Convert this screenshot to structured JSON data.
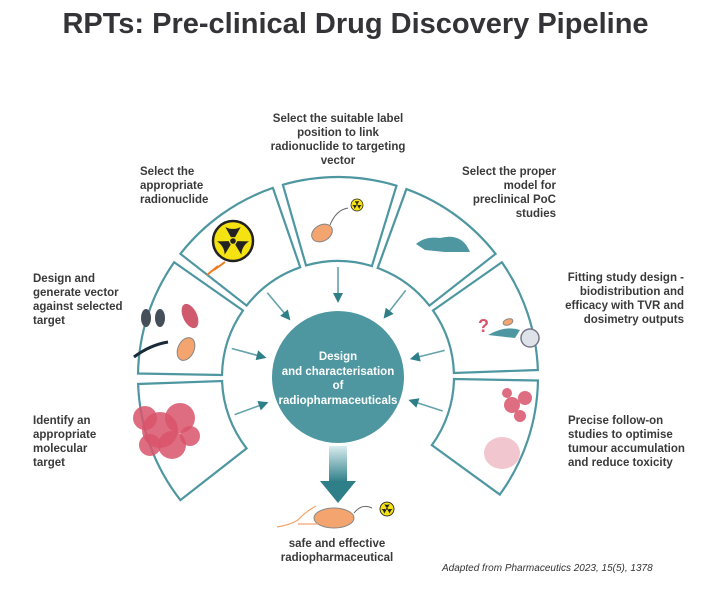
{
  "title": "RPTs: Pre-clinical Drug Discovery Pipeline",
  "colors": {
    "teal": "#4e97a1",
    "ring_stroke": "#4e97a1",
    "orange": "#f4a46e",
    "tumour": "#d9536b",
    "yellow": "#f5e211"
  },
  "center": {
    "text_lines": [
      "Design",
      "and characterisation",
      "of",
      "radiopharmaceuticals"
    ]
  },
  "steps": [
    {
      "label": "Identify an appropriate molecular target",
      "icon": "tumour-cells-icon"
    },
    {
      "label": "Design and generate vector against selected target",
      "icon": "antibody-vector-icon"
    },
    {
      "label": "Select the appropriate radionuclide",
      "icon": "radiation-icon"
    },
    {
      "label": "Select the suitable label position to link radionuclide to targeting vector",
      "icon": "labelled-vector-icon"
    },
    {
      "label": "Select the proper model for preclinical PoC studies",
      "icon": "mouse-icon"
    },
    {
      "label": "Fitting study design - biodistribution and efficacy with TVR and dosimetry outputs",
      "icon": "scanner-icon"
    },
    {
      "label": "Precise follow-on studies to optimise tumour accumulation and reduce toxicity",
      "icon": "tumour-targeting-icon"
    }
  ],
  "output": {
    "label": "safe and effective radiopharmaceutical",
    "icon": "radiopharmaceutical-icon"
  },
  "credit": "Adapted from Pharmaceutics 2023, 15(5), 1378"
}
